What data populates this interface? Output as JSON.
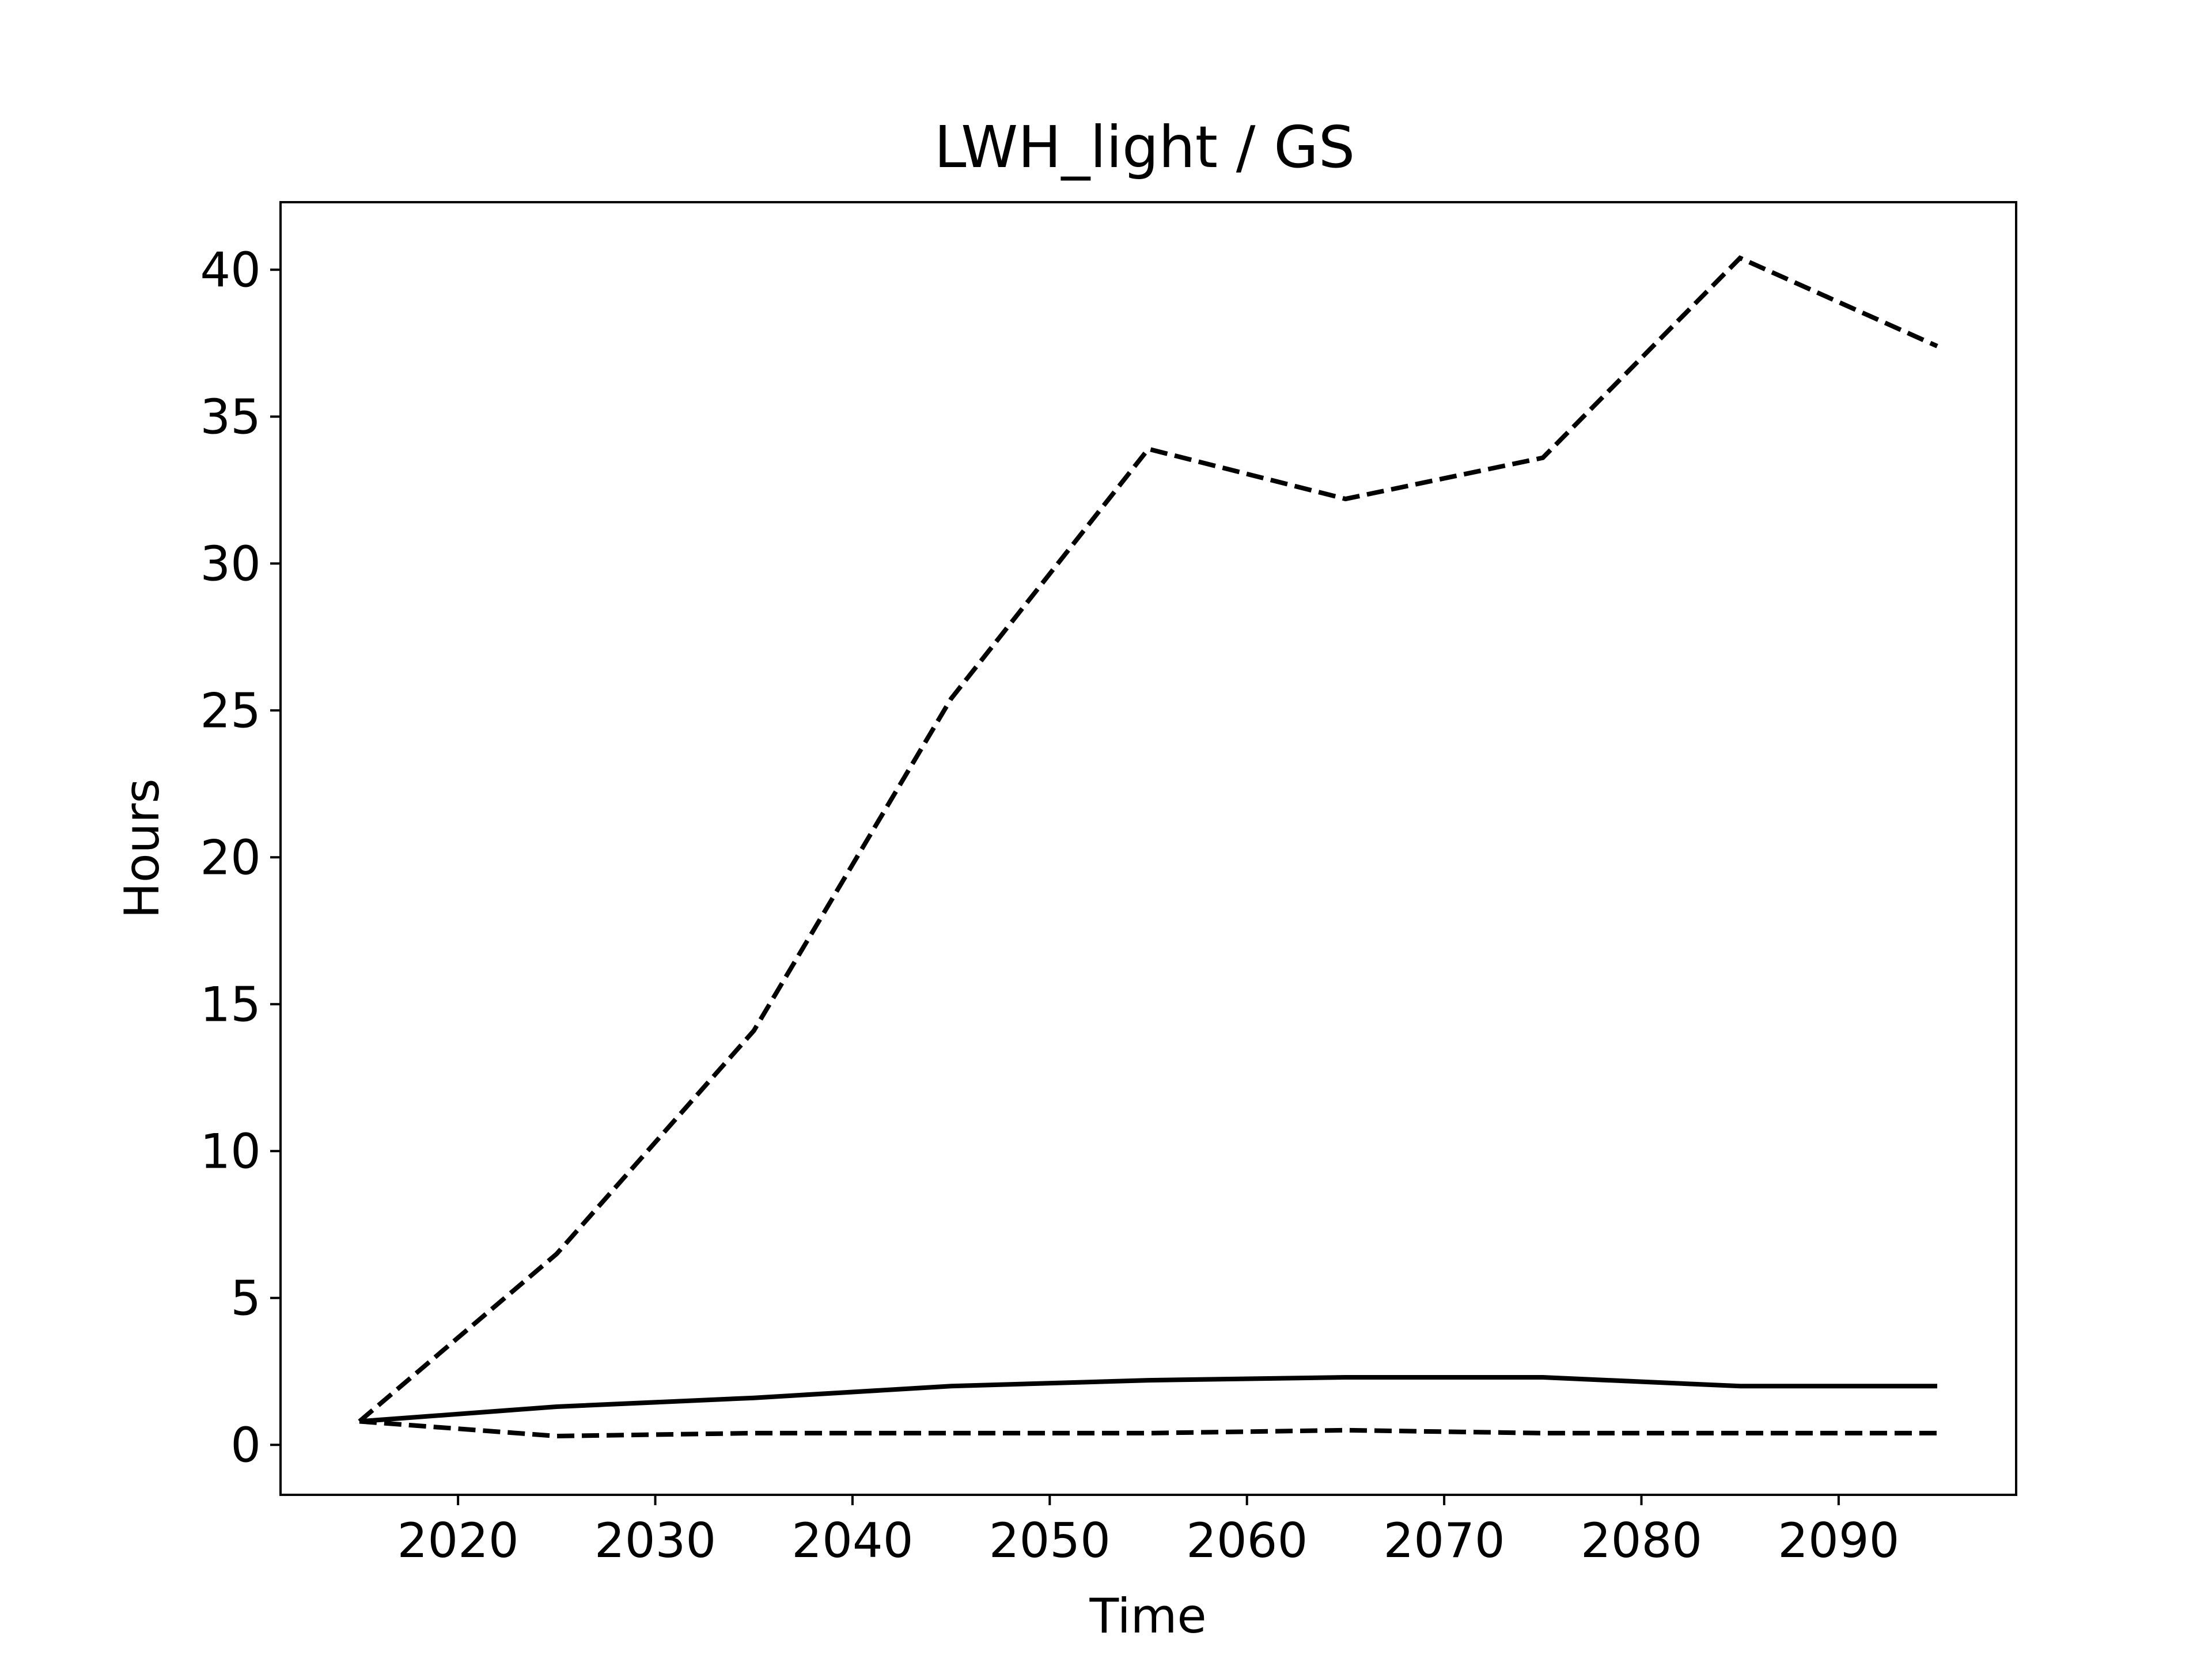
{
  "chart_data": {
    "type": "line",
    "title": "LWH_light / GS",
    "xlabel": "Time",
    "ylabel": "Hours",
    "xlim": [
      2011,
      2099
    ],
    "ylim": [
      -1.7,
      42.3
    ],
    "xticks": [
      2020,
      2030,
      2040,
      2050,
      2060,
      2070,
      2080,
      2090
    ],
    "yticks": [
      0,
      5,
      10,
      15,
      20,
      25,
      30,
      35,
      40
    ],
    "grid": false,
    "legend": "none",
    "x": [
      2015,
      2025,
      2035,
      2045,
      2055,
      2065,
      2075,
      2085,
      2095
    ],
    "series": [
      {
        "style": "dashed",
        "color": "#000000",
        "values": [
          0.8,
          6.5,
          14.1,
          25.4,
          33.9,
          32.2,
          33.6,
          40.4,
          37.4
        ]
      },
      {
        "style": "solid",
        "color": "#000000",
        "values": [
          0.8,
          1.3,
          1.6,
          2.0,
          2.2,
          2.3,
          2.3,
          2.0,
          2.0
        ]
      },
      {
        "style": "dashed",
        "color": "#000000",
        "values": [
          0.8,
          0.3,
          0.4,
          0.4,
          0.4,
          0.5,
          0.4,
          0.4,
          0.4
        ]
      }
    ]
  }
}
